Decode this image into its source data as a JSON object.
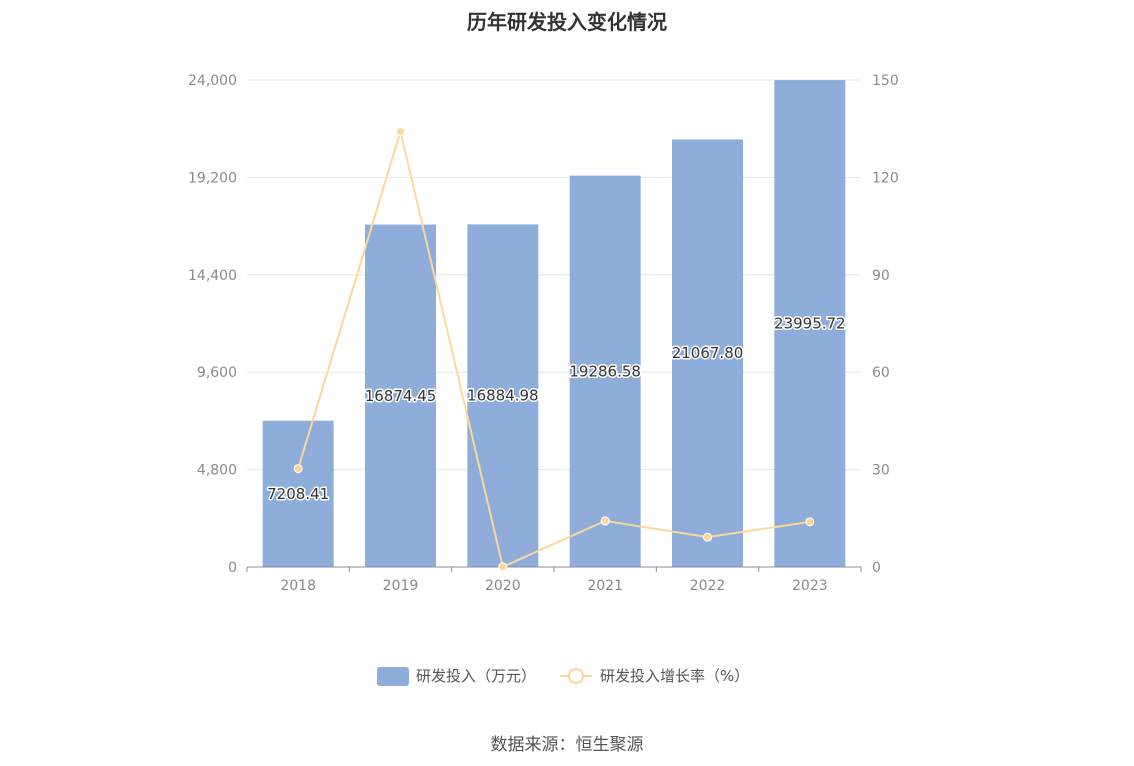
{
  "chart_data": {
    "type": "bar",
    "title": "历年研发投入变化情况",
    "categories": [
      "2018",
      "2019",
      "2020",
      "2021",
      "2022",
      "2023"
    ],
    "series": [
      {
        "name": "研发投入（万元）",
        "type": "bar",
        "axis": "left",
        "values": [
          7208.41,
          16874.45,
          16884.98,
          19286.58,
          21067.8,
          23995.72
        ],
        "labels": [
          "7208.41",
          "16874.45",
          "16884.98",
          "19286.58",
          "21067.80",
          "23995.72"
        ],
        "color": "#8eaddb"
      },
      {
        "name": "研发投入增长率（%）",
        "type": "line",
        "axis": "right",
        "values": [
          30.3,
          134.1,
          0.06,
          14.2,
          9.2,
          13.9
        ],
        "color": "#fbd89a"
      }
    ],
    "y_left": {
      "ylim": [
        0,
        24000
      ],
      "ticks": [
        "0",
        "4,800",
        "9,600",
        "14,400",
        "19,200",
        "24,000"
      ]
    },
    "y_right": {
      "ylim": [
        0,
        150
      ],
      "ticks": [
        "0",
        "30",
        "60",
        "90",
        "120",
        "150"
      ]
    },
    "grid": true,
    "legend_position": "bottom-center",
    "source": "数据来源：恒生聚源"
  }
}
